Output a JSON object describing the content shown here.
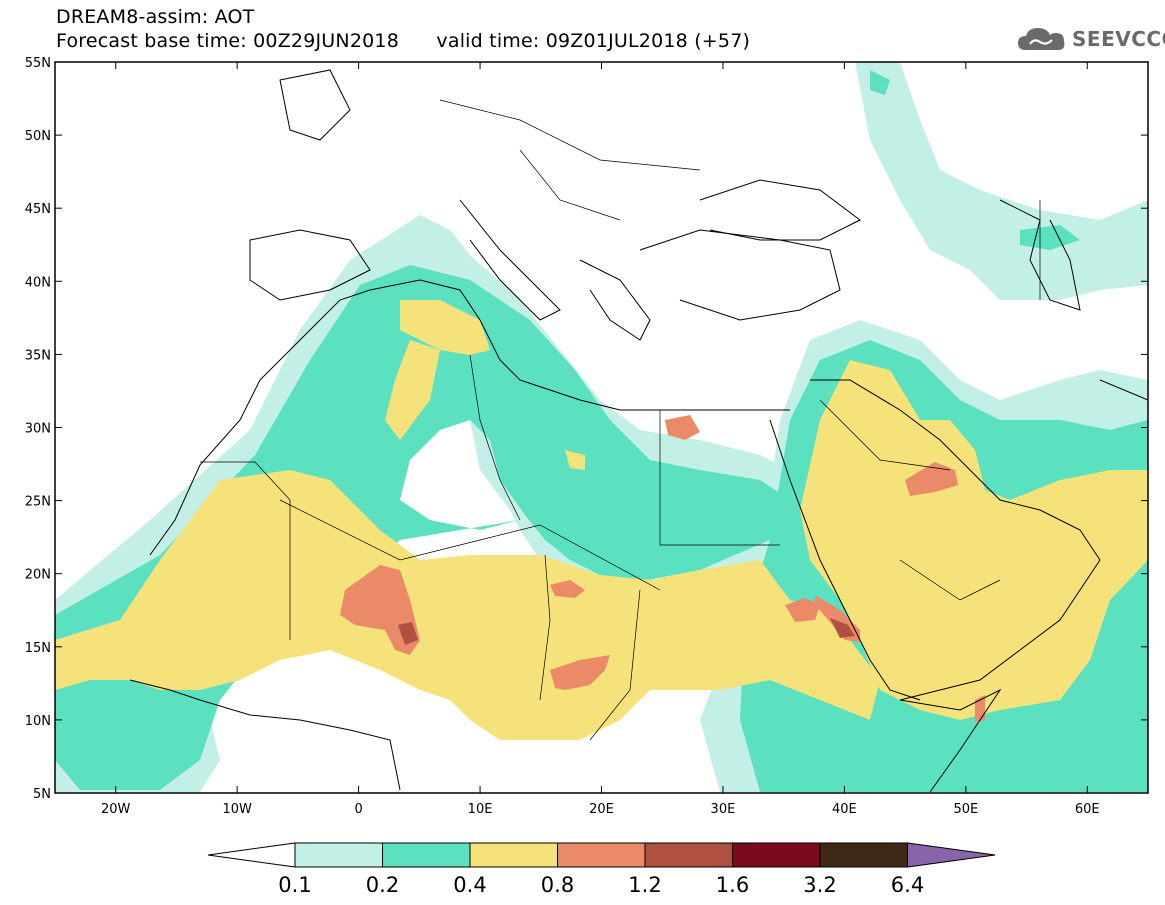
{
  "title": {
    "line1": "DREAM8-assim: AOT",
    "line2": "Forecast base time: 00Z29JUN2018      valid time: 09Z01JUL2018 (+57)"
  },
  "logo": {
    "text": "SEEVCCC",
    "icon": "cloud-icon",
    "color": "#6a6a6a"
  },
  "axes": {
    "lat_ticks": [
      "55N",
      "50N",
      "45N",
      "40N",
      "35N",
      "30N",
      "25N",
      "20N",
      "15N",
      "10N",
      "5N"
    ],
    "lon_ticks": [
      "20W",
      "10W",
      "0",
      "10E",
      "20E",
      "30E",
      "40E",
      "50E",
      "60E"
    ],
    "lon_range": [
      -25,
      65
    ],
    "lat_range": [
      5,
      55
    ]
  },
  "colorbar": {
    "labels": [
      "0.1",
      "0.2",
      "0.4",
      "0.8",
      "1.2",
      "1.6",
      "3.2",
      "6.4"
    ],
    "colors": [
      "#c2f0e6",
      "#5ce1c0",
      "#f5e27a",
      "#ea8a68",
      "#b05040",
      "#7c0a1e",
      "#3e2816",
      "#8a64a8"
    ],
    "left_arrow_color": "#ffffff"
  },
  "field_colors": {
    "c01": "#c2f0e6",
    "c02": "#5ce1c0",
    "c04": "#f5e27a",
    "c08": "#ea8a68",
    "c12": "#b05040",
    "c16": "#7c0a1e",
    "c32": "#3e2816"
  }
}
